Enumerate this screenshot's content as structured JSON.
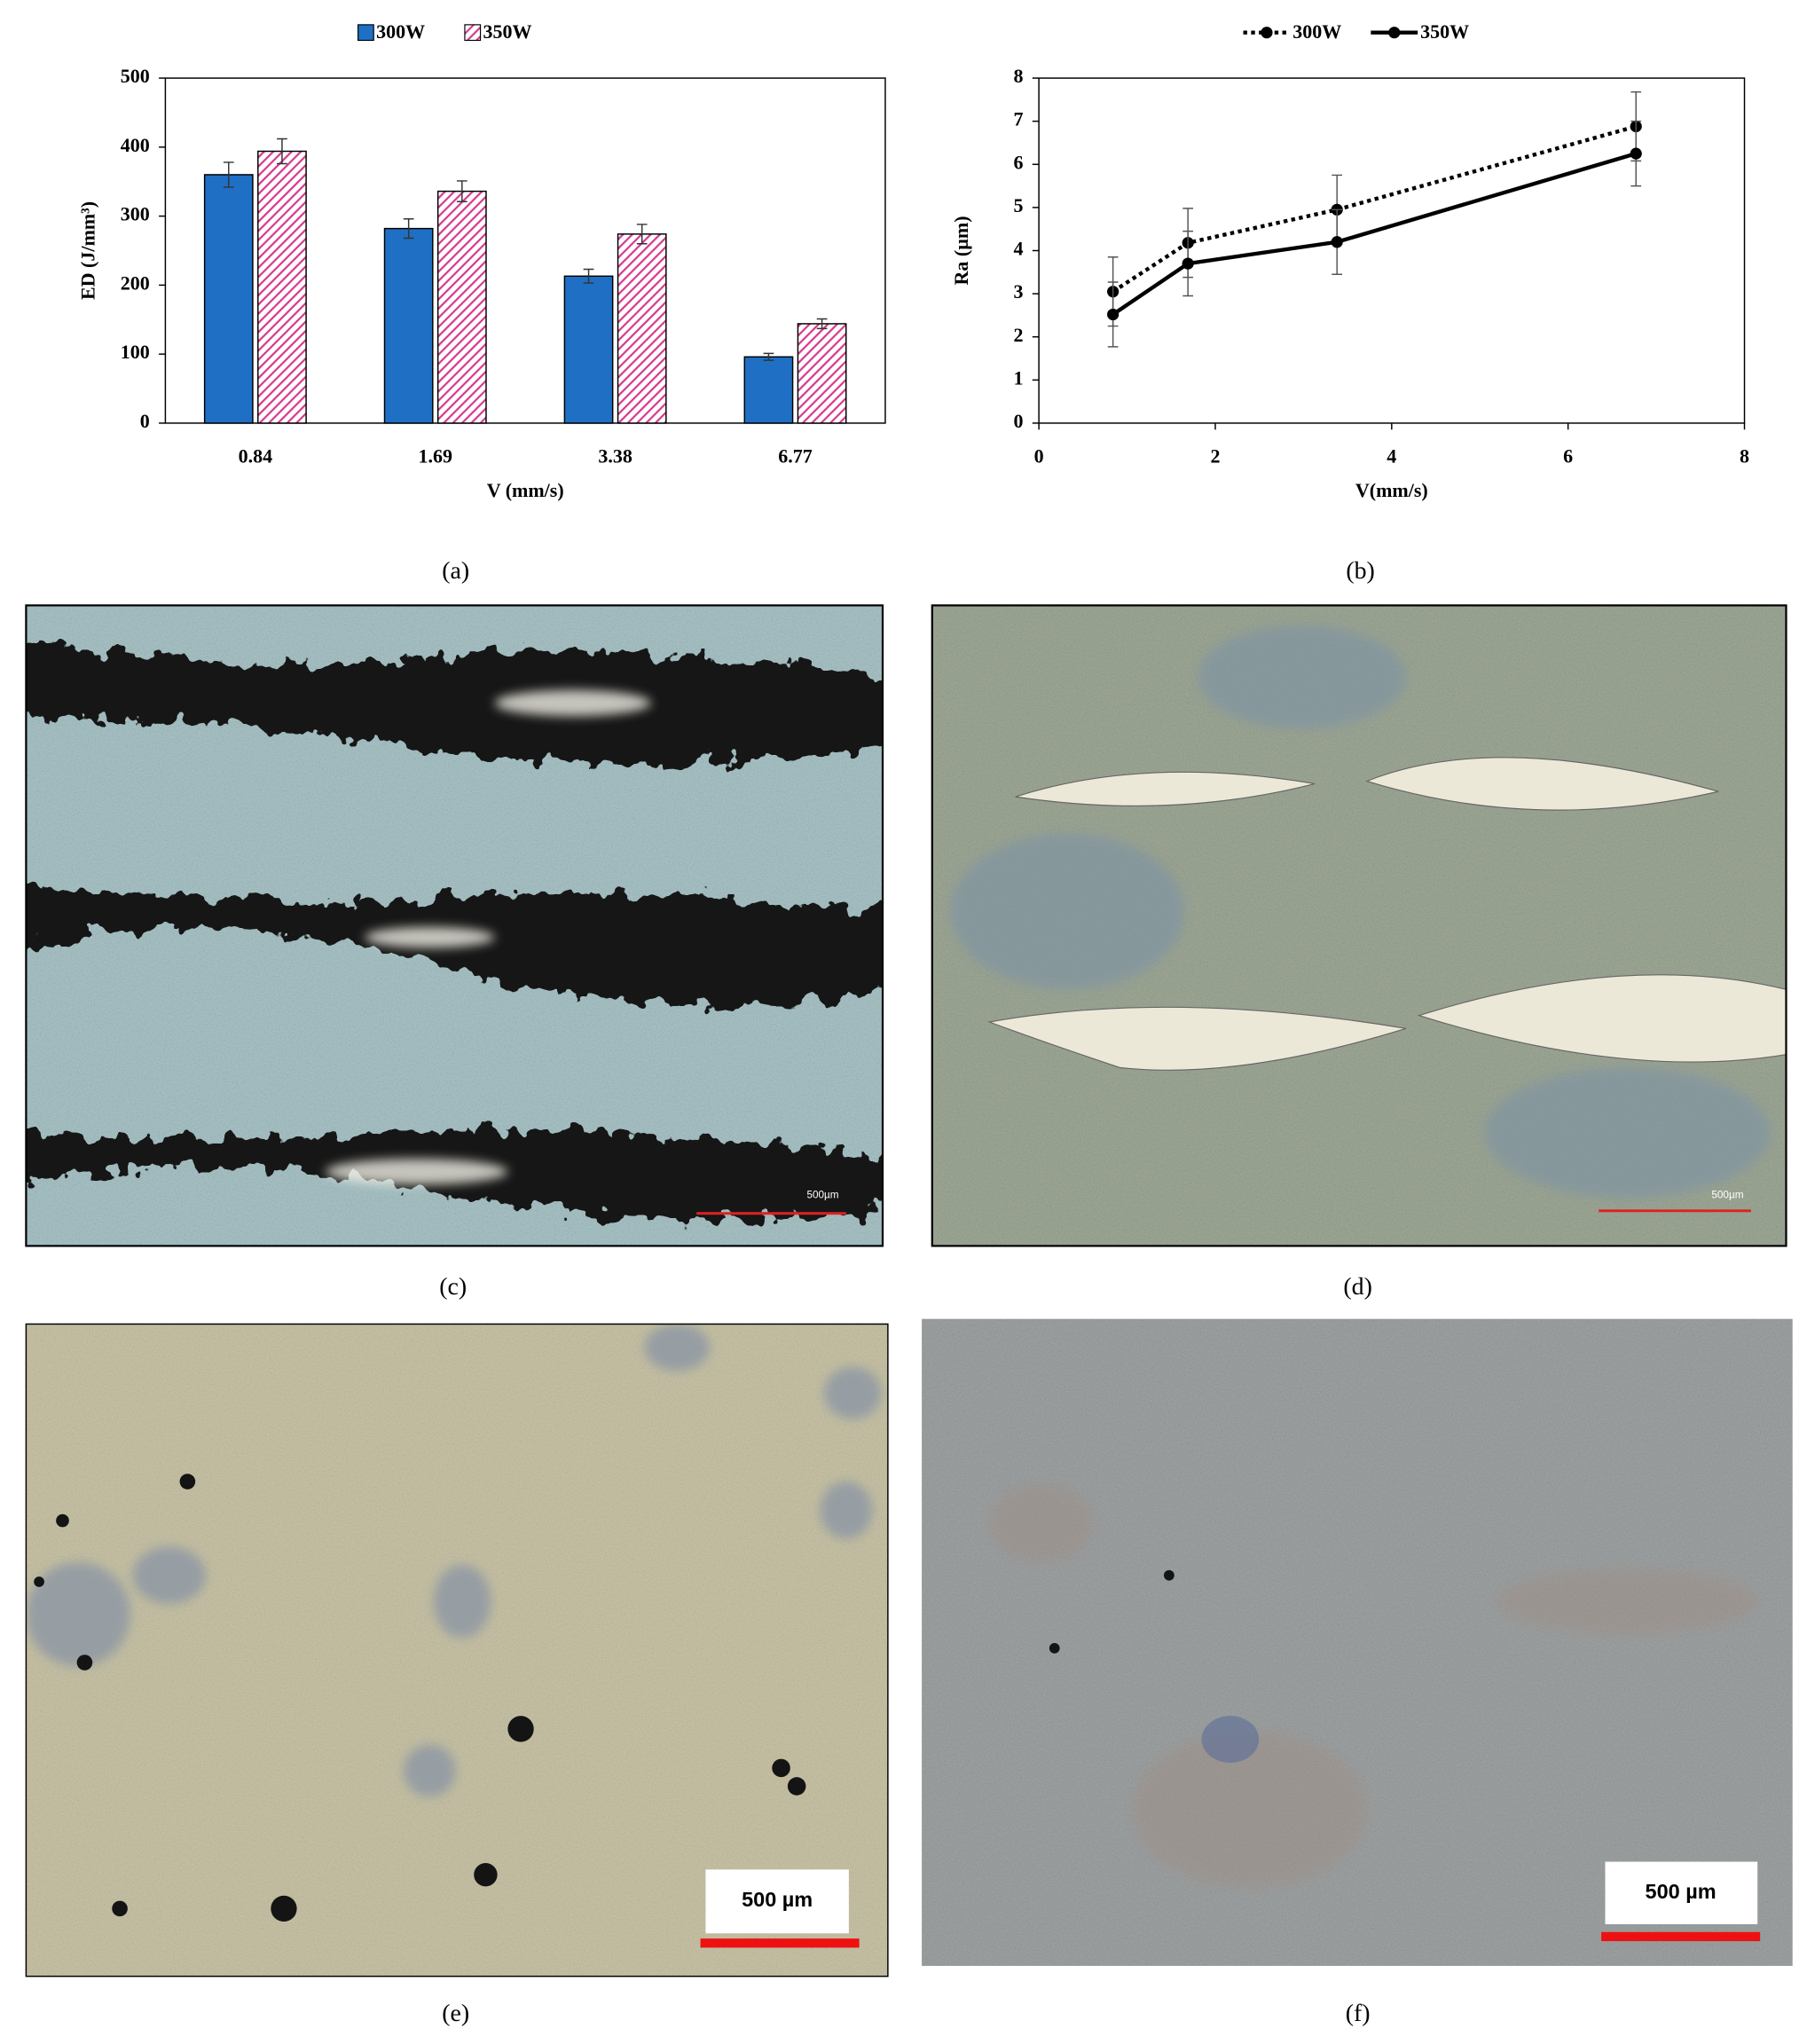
{
  "chart_data": [
    {
      "type": "bar",
      "label": "(a)",
      "x_label": "V (mm/s)",
      "y_label": "ED (J/mm³)",
      "categories": [
        "0.84",
        "1.69",
        "3.38",
        "6.77"
      ],
      "series": [
        {
          "name": "300W",
          "color": "#1f6fc5",
          "values": [
            360,
            282,
            213,
            96
          ],
          "errors": [
            18,
            14,
            10,
            5
          ]
        },
        {
          "name": "350W",
          "color": "#d6398f",
          "pattern": "hatch",
          "values": [
            394,
            336,
            274,
            144
          ],
          "errors": [
            18,
            15,
            14,
            7
          ]
        }
      ],
      "ylim": [
        0,
        500
      ],
      "yticks": [
        0,
        100,
        200,
        300,
        400,
        500
      ]
    },
    {
      "type": "line",
      "label": "(b)",
      "x_label": "V(mm/s)",
      "y_label": "Ra (µm)",
      "x": [
        0.84,
        1.69,
        3.38,
        6.77
      ],
      "series": [
        {
          "name": "300W",
          "color": "#000000",
          "dash": "dotted",
          "values": [
            3.05,
            4.18,
            4.95,
            6.88
          ],
          "errors": [
            0.8,
            0.8,
            0.8,
            0.8
          ]
        },
        {
          "name": "350W",
          "color": "#000000",
          "dash": "solid",
          "values": [
            2.52,
            3.7,
            4.2,
            6.25
          ],
          "errors": [
            0.75,
            0.75,
            0.75,
            0.75
          ]
        }
      ],
      "xlim": [
        0,
        8
      ],
      "xticks": [
        0,
        2,
        4,
        6,
        8
      ],
      "ylim": [
        0,
        8
      ],
      "yticks": [
        0,
        1,
        2,
        3,
        4,
        5,
        6,
        7,
        8
      ]
    }
  ],
  "panels": [
    {
      "label": "(c)",
      "scale_bar": "500µm"
    },
    {
      "label": "(d)",
      "scale_bar": "500µm"
    },
    {
      "label": "(e)",
      "scale_bar": "500 µm"
    },
    {
      "label": "(f)",
      "scale_bar": "500 µm"
    }
  ]
}
